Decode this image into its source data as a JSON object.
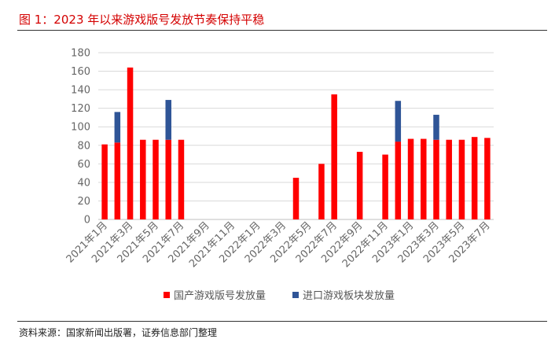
{
  "header": {
    "title": "图 1：2023 年以来游戏版号发放节奏保持平稳",
    "source": "资料来源：国家新闻出版署，证券信息部门整理"
  },
  "colors": {
    "domestic": "#ff0000",
    "imported": "#2f5597",
    "grid": "#d9d9d9",
    "axis": "#bfbfbf"
  },
  "chart_data": {
    "type": "bar",
    "stacked": true,
    "categories": [
      "2021年1月",
      "2021年2月",
      "2021年3月",
      "2021年4月",
      "2021年5月",
      "2021年6月",
      "2021年7月",
      "2021年8月",
      "2021年9月",
      "2021年10月",
      "2021年11月",
      "2021年12月",
      "2022年1月",
      "2022年2月",
      "2022年3月",
      "2022年4月",
      "2022年5月",
      "2022年6月",
      "2022年7月",
      "2022年8月",
      "2022年9月",
      "2022年10月",
      "2022年11月",
      "2022年12月",
      "2023年1月",
      "2023年2月",
      "2023年3月",
      "2023年4月",
      "2023年5月",
      "2023年6月",
      "2023年7月"
    ],
    "xtick_labels": [
      "2021年1月",
      "2021年3月",
      "2021年5月",
      "2021年7月",
      "2021年9月",
      "2021年11月",
      "2022年1月",
      "2022年3月",
      "2022年5月",
      "2022年7月",
      "2022年9月",
      "2022年11月",
      "2023年1月",
      "2023年3月",
      "2023年5月",
      "2023年7月"
    ],
    "series": [
      {
        "name": "国产游戏版号发放量",
        "values": [
          81,
          83,
          164,
          86,
          86,
          86,
          86,
          0,
          0,
          0,
          0,
          0,
          0,
          0,
          0,
          45,
          0,
          60,
          135,
          0,
          73,
          0,
          70,
          84,
          87,
          87,
          86,
          86,
          86,
          89,
          88
        ]
      },
      {
        "name": "进口游戏板块发放量",
        "values": [
          0,
          33,
          0,
          0,
          0,
          43,
          0,
          0,
          0,
          0,
          0,
          0,
          0,
          0,
          0,
          0,
          0,
          0,
          0,
          0,
          0,
          0,
          0,
          44,
          0,
          0,
          27,
          0,
          0,
          0,
          0
        ]
      }
    ],
    "ylim": [
      0,
      180
    ],
    "yticks": [
      0,
      20,
      40,
      60,
      80,
      100,
      120,
      140,
      160,
      180
    ],
    "grid": true,
    "legend_position": "bottom"
  }
}
